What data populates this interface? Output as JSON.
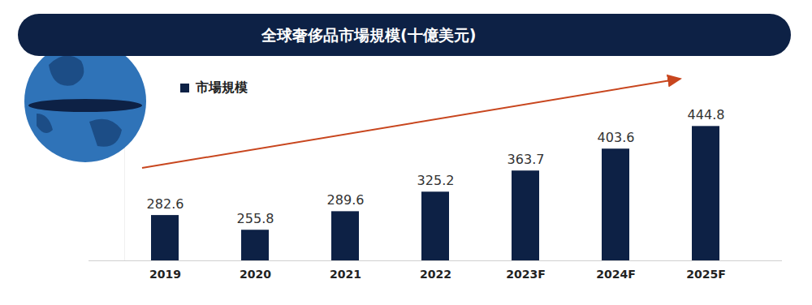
{
  "chart_data": {
    "type": "bar",
    "title": "全球奢侈品市場規模(十億美元)",
    "categories": [
      "2019",
      "2020",
      "2021",
      "2022",
      "2023F",
      "2024F",
      "2025F"
    ],
    "series": [
      {
        "name": "市場規模",
        "color": "#0d2145",
        "values": [
          282.6,
          255.8,
          289.6,
          325.2,
          363.7,
          403.6,
          444.8
        ]
      }
    ],
    "ylim": [
      200,
      500
    ],
    "yticks": [],
    "grid": false,
    "legend": "top-left",
    "data_labels": true,
    "tick_labels": "x"
  }
}
